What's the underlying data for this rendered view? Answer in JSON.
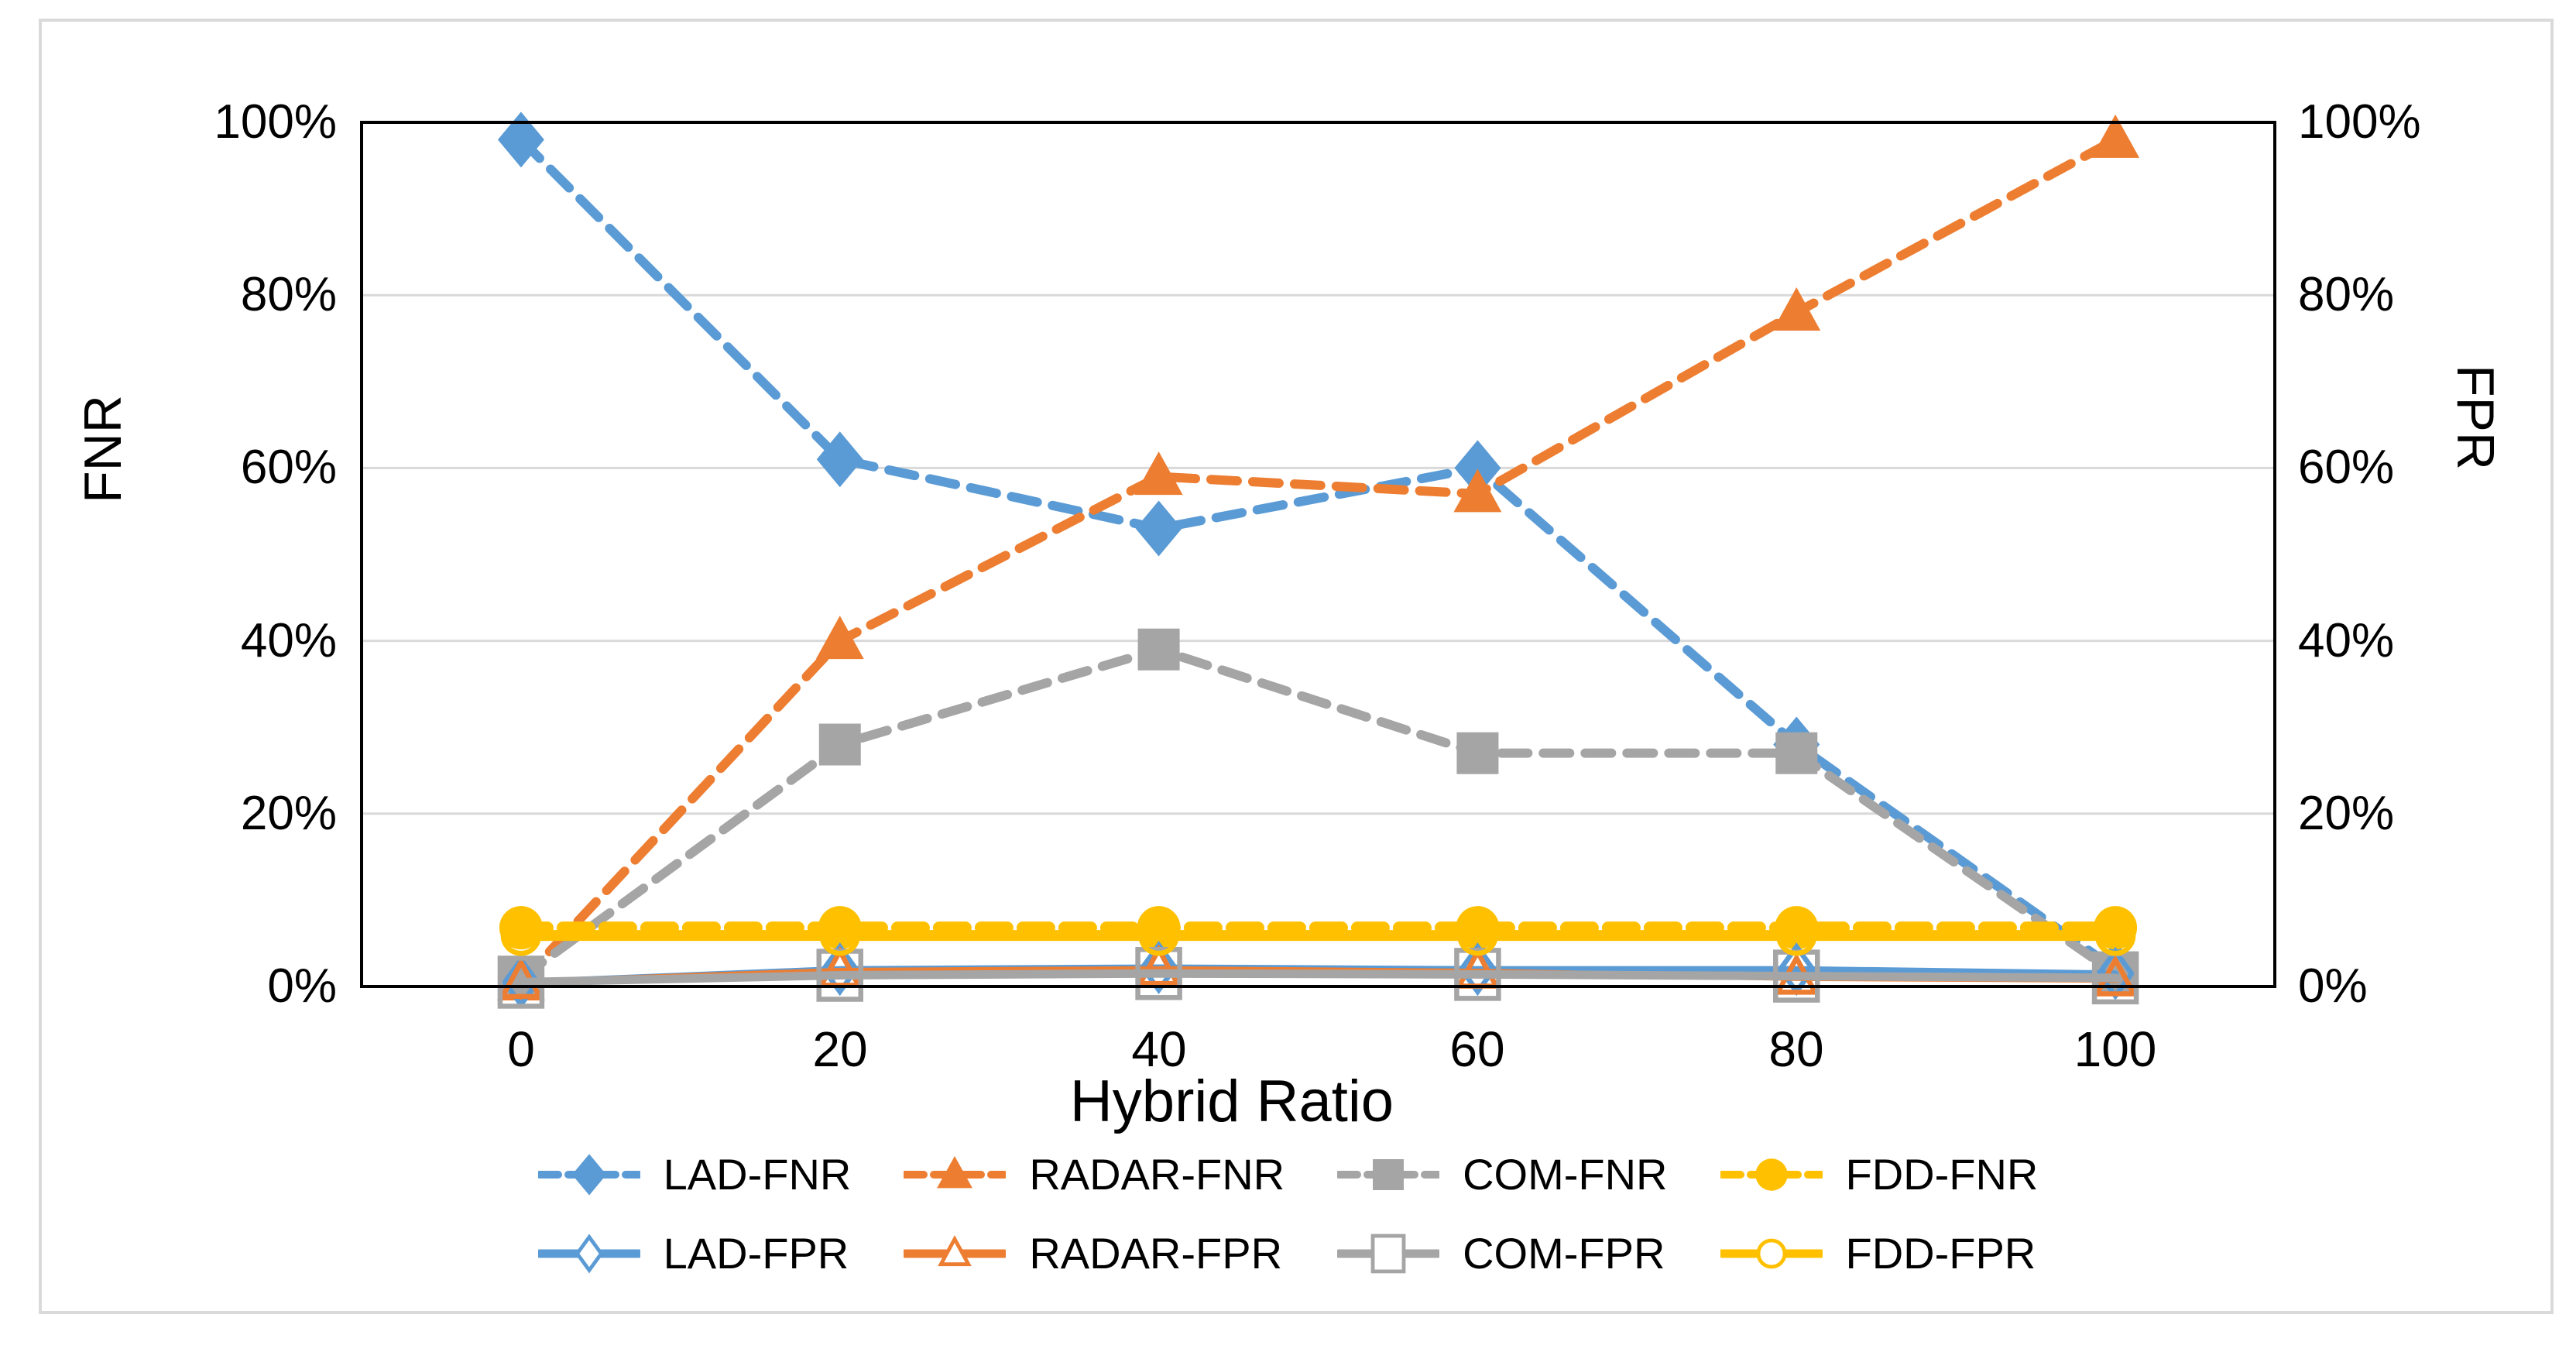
{
  "figure": {
    "background": "#FFFFFF",
    "border_color": "#DADADA"
  },
  "chart_data": {
    "type": "line",
    "title": "",
    "xlabel": "Hybrid Ratio",
    "ylabel_left": "FNR",
    "ylabel_right": "FPR",
    "x_values": [
      0,
      20,
      40,
      60,
      80,
      100
    ],
    "x_tick_labels": [
      "0",
      "20",
      "40",
      "60",
      "80",
      "100"
    ],
    "y_ticks_left": [
      "0%",
      "20%",
      "40%",
      "60%",
      "80%",
      "100%"
    ],
    "y_ticks_right": [
      "0%",
      "20%",
      "40%",
      "60%",
      "80%",
      "100%"
    ],
    "ylim": [
      0,
      100
    ],
    "grid": "horizontal",
    "gridline_color": "#D9D9D9",
    "axis_color": "#000000",
    "legend_position": "bottom-two-rows",
    "series": [
      {
        "name": "LAD-FNR",
        "axis": "left",
        "color": "#5B9BD5",
        "line": "dashed",
        "marker": "diamond",
        "marker_fill": "filled",
        "values": [
          98,
          61,
          53,
          60,
          28,
          2
        ]
      },
      {
        "name": "RADAR-FNR",
        "axis": "left",
        "color": "#ED7D31",
        "line": "dashed",
        "marker": "triangle",
        "marker_fill": "filled",
        "values": [
          0.5,
          40,
          59,
          57,
          78,
          98
        ]
      },
      {
        "name": "COM-FNR",
        "axis": "left",
        "color": "#A5A5A5",
        "line": "dashed",
        "marker": "square",
        "marker_fill": "filled",
        "values": [
          1,
          28,
          39,
          27,
          27,
          1.5
        ]
      },
      {
        "name": "FDD-FNR",
        "axis": "left",
        "color": "#FFC000",
        "line": "dashed",
        "marker": "circle",
        "marker_fill": "filled",
        "values": [
          6.8,
          6.8,
          6.8,
          6.8,
          6.8,
          6.8
        ]
      },
      {
        "name": "LAD-FPR",
        "axis": "right",
        "color": "#5B9BD5",
        "line": "solid",
        "marker": "diamond",
        "marker_fill": "hollow",
        "values": [
          0.5,
          2,
          2.2,
          2,
          2,
          1.5
        ]
      },
      {
        "name": "RADAR-FPR",
        "axis": "right",
        "color": "#ED7D31",
        "line": "solid",
        "marker": "triangle",
        "marker_fill": "hollow",
        "values": [
          0.5,
          1.8,
          2,
          1.7,
          1,
          0.8
        ]
      },
      {
        "name": "COM-FPR",
        "axis": "right",
        "color": "#A5A5A5",
        "line": "solid",
        "marker": "square",
        "marker_fill": "hollow",
        "values": [
          0.5,
          1.3,
          1.5,
          1.4,
          1.2,
          1
        ]
      },
      {
        "name": "FDD-FPR",
        "axis": "right",
        "color": "#FFC000",
        "line": "solid",
        "marker": "circle",
        "marker_fill": "hollow",
        "values": [
          5.9,
          5.9,
          5.9,
          5.9,
          5.9,
          5.9
        ]
      }
    ]
  }
}
